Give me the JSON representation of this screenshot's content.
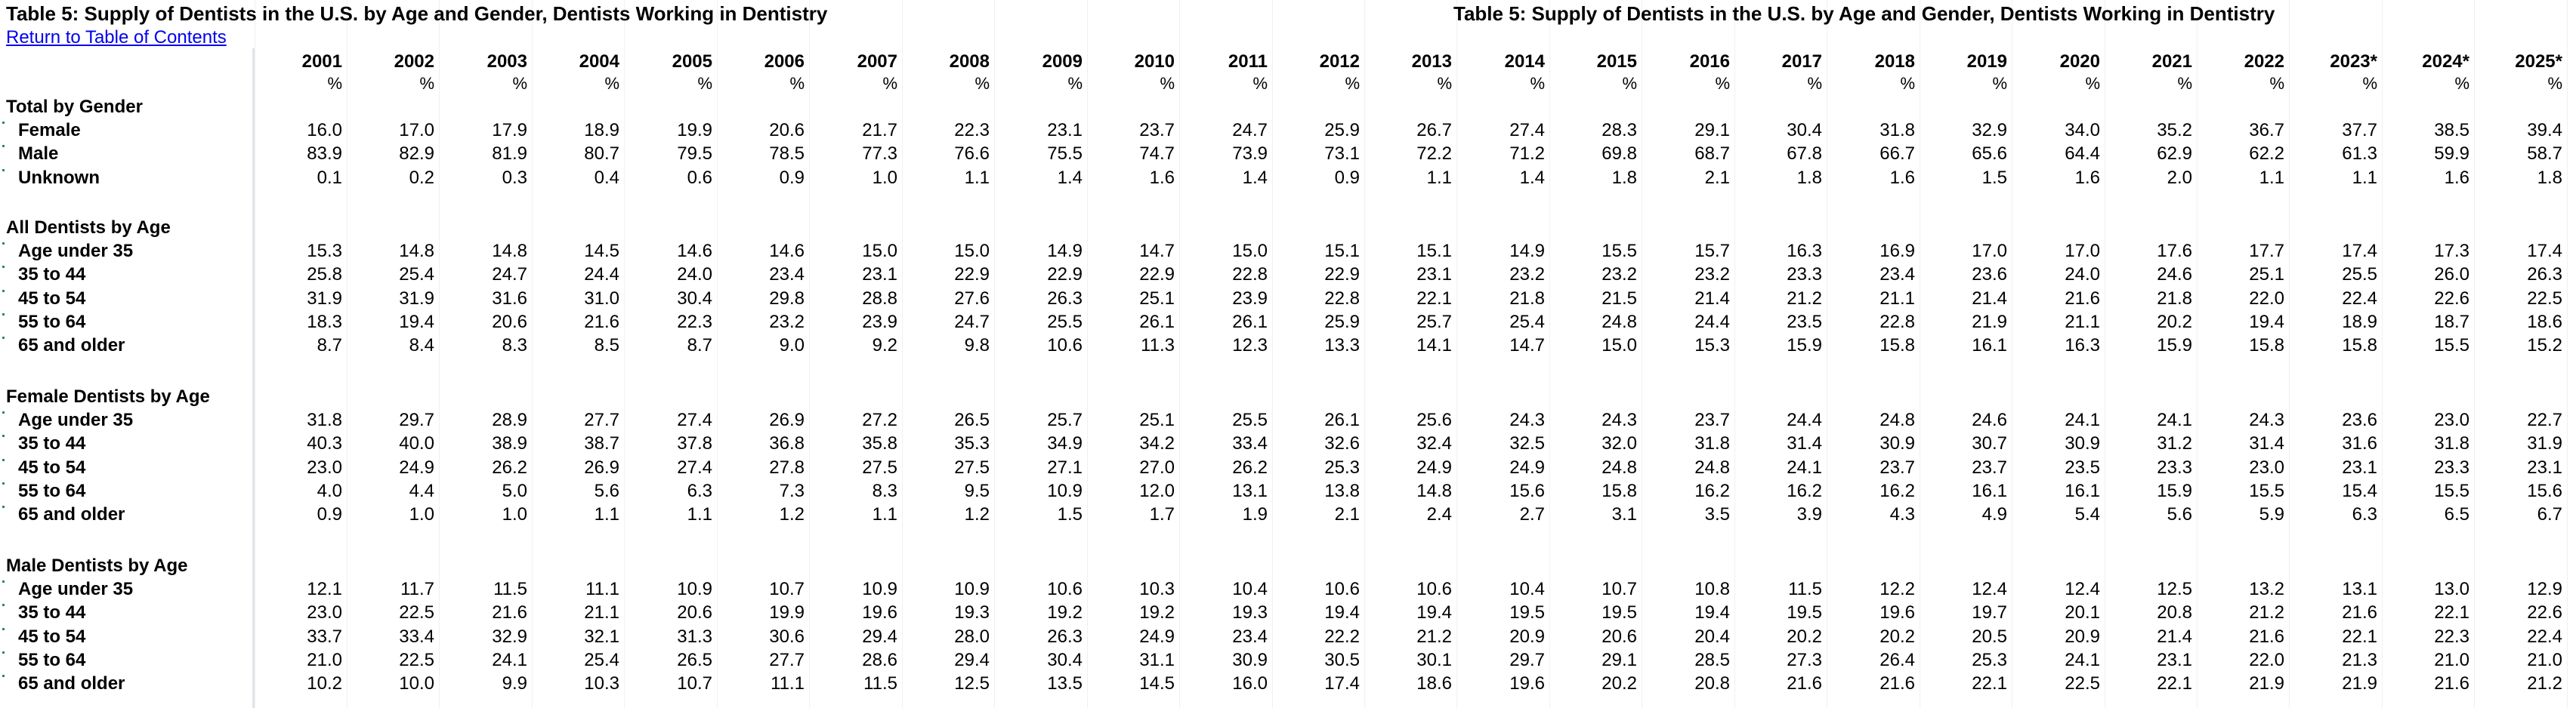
{
  "titles": {
    "left": "Table 5: Supply of Dentists in the U.S. by Age and Gender, Dentists Working in Dentistry",
    "right": "Table 5: Supply of Dentists in the U.S. by Age and Gender, Dentists Working in Dentistry"
  },
  "return_link": "Return to Table of Contents",
  "unit": "%",
  "years": [
    "2001",
    "2002",
    "2003",
    "2004",
    "2005",
    "2006",
    "2007",
    "2008",
    "2009",
    "2010",
    "2011",
    "2012",
    "2013",
    "2014",
    "2015",
    "2016",
    "2017",
    "2018",
    "2019",
    "2020",
    "2021",
    "2022",
    "2023*",
    "2024*",
    "2025*"
  ],
  "sections": [
    {
      "title": "Total by Gender",
      "rows": [
        {
          "label": "Female",
          "values": [
            "16.0",
            "17.0",
            "17.9",
            "18.9",
            "19.9",
            "20.6",
            "21.7",
            "22.3",
            "23.1",
            "23.7",
            "24.7",
            "25.9",
            "26.7",
            "27.4",
            "28.3",
            "29.1",
            "30.4",
            "31.8",
            "32.9",
            "34.0",
            "35.2",
            "36.7",
            "37.7",
            "38.5",
            "39.4"
          ]
        },
        {
          "label": "Male",
          "values": [
            "83.9",
            "82.9",
            "81.9",
            "80.7",
            "79.5",
            "78.5",
            "77.3",
            "76.6",
            "75.5",
            "74.7",
            "73.9",
            "73.1",
            "72.2",
            "71.2",
            "69.8",
            "68.7",
            "67.8",
            "66.7",
            "65.6",
            "64.4",
            "62.9",
            "62.2",
            "61.3",
            "59.9",
            "58.7"
          ]
        },
        {
          "label": "Unknown",
          "values": [
            "0.1",
            "0.2",
            "0.3",
            "0.4",
            "0.6",
            "0.9",
            "1.0",
            "1.1",
            "1.4",
            "1.6",
            "1.4",
            "0.9",
            "1.1",
            "1.4",
            "1.8",
            "2.1",
            "1.8",
            "1.6",
            "1.5",
            "1.6",
            "2.0",
            "1.1",
            "1.1",
            "1.6",
            "1.8"
          ]
        }
      ]
    },
    {
      "title": "All Dentists by Age",
      "rows": [
        {
          "label": "Age under 35",
          "values": [
            "15.3",
            "14.8",
            "14.8",
            "14.5",
            "14.6",
            "14.6",
            "15.0",
            "15.0",
            "14.9",
            "14.7",
            "15.0",
            "15.1",
            "15.1",
            "14.9",
            "15.5",
            "15.7",
            "16.3",
            "16.9",
            "17.0",
            "17.0",
            "17.6",
            "17.7",
            "17.4",
            "17.3",
            "17.4"
          ]
        },
        {
          "label": "35 to 44",
          "values": [
            "25.8",
            "25.4",
            "24.7",
            "24.4",
            "24.0",
            "23.4",
            "23.1",
            "22.9",
            "22.9",
            "22.9",
            "22.8",
            "22.9",
            "23.1",
            "23.2",
            "23.2",
            "23.2",
            "23.3",
            "23.4",
            "23.6",
            "24.0",
            "24.6",
            "25.1",
            "25.5",
            "26.0",
            "26.3"
          ]
        },
        {
          "label": "45 to 54",
          "values": [
            "31.9",
            "31.9",
            "31.6",
            "31.0",
            "30.4",
            "29.8",
            "28.8",
            "27.6",
            "26.3",
            "25.1",
            "23.9",
            "22.8",
            "22.1",
            "21.8",
            "21.5",
            "21.4",
            "21.2",
            "21.1",
            "21.4",
            "21.6",
            "21.8",
            "22.0",
            "22.4",
            "22.6",
            "22.5"
          ]
        },
        {
          "label": "55 to 64",
          "values": [
            "18.3",
            "19.4",
            "20.6",
            "21.6",
            "22.3",
            "23.2",
            "23.9",
            "24.7",
            "25.5",
            "26.1",
            "26.1",
            "25.9",
            "25.7",
            "25.4",
            "24.8",
            "24.4",
            "23.5",
            "22.8",
            "21.9",
            "21.1",
            "20.2",
            "19.4",
            "18.9",
            "18.7",
            "18.6"
          ]
        },
        {
          "label": "65 and older",
          "values": [
            "8.7",
            "8.4",
            "8.3",
            "8.5",
            "8.7",
            "9.0",
            "9.2",
            "9.8",
            "10.6",
            "11.3",
            "12.3",
            "13.3",
            "14.1",
            "14.7",
            "15.0",
            "15.3",
            "15.9",
            "15.8",
            "16.1",
            "16.3",
            "15.9",
            "15.8",
            "15.8",
            "15.5",
            "15.2"
          ]
        }
      ]
    },
    {
      "title": "Female Dentists by Age",
      "rows": [
        {
          "label": "Age under 35",
          "values": [
            "31.8",
            "29.7",
            "28.9",
            "27.7",
            "27.4",
            "26.9",
            "27.2",
            "26.5",
            "25.7",
            "25.1",
            "25.5",
            "26.1",
            "25.6",
            "24.3",
            "24.3",
            "23.7",
            "24.4",
            "24.8",
            "24.6",
            "24.1",
            "24.1",
            "24.3",
            "23.6",
            "23.0",
            "22.7"
          ]
        },
        {
          "label": "35 to 44",
          "values": [
            "40.3",
            "40.0",
            "38.9",
            "38.7",
            "37.8",
            "36.8",
            "35.8",
            "35.3",
            "34.9",
            "34.2",
            "33.4",
            "32.6",
            "32.4",
            "32.5",
            "32.0",
            "31.8",
            "31.4",
            "30.9",
            "30.7",
            "30.9",
            "31.2",
            "31.4",
            "31.6",
            "31.8",
            "31.9"
          ]
        },
        {
          "label": "45 to 54",
          "values": [
            "23.0",
            "24.9",
            "26.2",
            "26.9",
            "27.4",
            "27.8",
            "27.5",
            "27.5",
            "27.1",
            "27.0",
            "26.2",
            "25.3",
            "24.9",
            "24.9",
            "24.8",
            "24.8",
            "24.1",
            "23.7",
            "23.7",
            "23.5",
            "23.3",
            "23.0",
            "23.1",
            "23.3",
            "23.1"
          ]
        },
        {
          "label": "55 to 64",
          "values": [
            "4.0",
            "4.4",
            "5.0",
            "5.6",
            "6.3",
            "7.3",
            "8.3",
            "9.5",
            "10.9",
            "12.0",
            "13.1",
            "13.8",
            "14.8",
            "15.6",
            "15.8",
            "16.2",
            "16.2",
            "16.2",
            "16.1",
            "16.1",
            "15.9",
            "15.5",
            "15.4",
            "15.5",
            "15.6"
          ]
        },
        {
          "label": "65 and older",
          "values": [
            "0.9",
            "1.0",
            "1.0",
            "1.1",
            "1.1",
            "1.2",
            "1.1",
            "1.2",
            "1.5",
            "1.7",
            "1.9",
            "2.1",
            "2.4",
            "2.7",
            "3.1",
            "3.5",
            "3.9",
            "4.3",
            "4.9",
            "5.4",
            "5.6",
            "5.9",
            "6.3",
            "6.5",
            "6.7"
          ]
        }
      ]
    },
    {
      "title": "Male Dentists by Age",
      "rows": [
        {
          "label": "Age under 35",
          "values": [
            "12.1",
            "11.7",
            "11.5",
            "11.1",
            "10.9",
            "10.7",
            "10.9",
            "10.9",
            "10.6",
            "10.3",
            "10.4",
            "10.6",
            "10.6",
            "10.4",
            "10.7",
            "10.8",
            "11.5",
            "12.2",
            "12.4",
            "12.4",
            "12.5",
            "13.2",
            "13.1",
            "13.0",
            "12.9"
          ]
        },
        {
          "label": "35 to 44",
          "values": [
            "23.0",
            "22.5",
            "21.6",
            "21.1",
            "20.6",
            "19.9",
            "19.6",
            "19.3",
            "19.2",
            "19.2",
            "19.3",
            "19.4",
            "19.4",
            "19.5",
            "19.5",
            "19.4",
            "19.5",
            "19.6",
            "19.7",
            "20.1",
            "20.8",
            "21.2",
            "21.6",
            "22.1",
            "22.6"
          ]
        },
        {
          "label": "45 to 54",
          "values": [
            "33.7",
            "33.4",
            "32.9",
            "32.1",
            "31.3",
            "30.6",
            "29.4",
            "28.0",
            "26.3",
            "24.9",
            "23.4",
            "22.2",
            "21.2",
            "20.9",
            "20.6",
            "20.4",
            "20.2",
            "20.2",
            "20.5",
            "20.9",
            "21.4",
            "21.6",
            "22.1",
            "22.3",
            "22.4"
          ]
        },
        {
          "label": "55 to 64",
          "values": [
            "21.0",
            "22.5",
            "24.1",
            "25.4",
            "26.5",
            "27.7",
            "28.6",
            "29.4",
            "30.4",
            "31.1",
            "30.9",
            "30.5",
            "30.1",
            "29.7",
            "29.1",
            "28.5",
            "27.3",
            "26.4",
            "25.3",
            "24.1",
            "23.1",
            "22.0",
            "21.3",
            "21.0",
            "21.0"
          ]
        },
        {
          "label": "65 and older",
          "values": [
            "10.2",
            "10.0",
            "9.9",
            "10.3",
            "10.7",
            "11.1",
            "11.5",
            "12.5",
            "13.5",
            "14.5",
            "16.0",
            "17.4",
            "18.6",
            "19.6",
            "20.2",
            "20.8",
            "21.6",
            "21.6",
            "22.1",
            "22.5",
            "22.1",
            "21.9",
            "21.9",
            "21.6",
            "21.2"
          ]
        }
      ]
    }
  ]
}
